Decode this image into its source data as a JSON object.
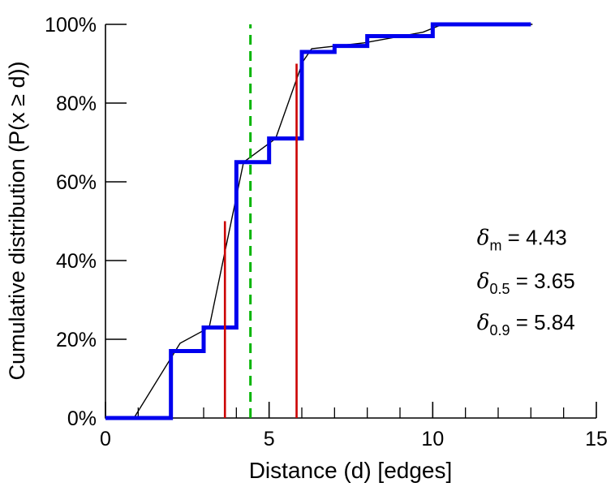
{
  "figure": {
    "title": ""
  },
  "chart_data": {
    "type": "line",
    "title": "",
    "xlabel": "Distance (d) [edges]",
    "ylabel": "Cumulative distribution (P(x ≥ d))",
    "xlim": [
      0,
      15
    ],
    "ylim": [
      0,
      100
    ],
    "grid": false,
    "legend": "none",
    "x_major_ticks": [
      0,
      5,
      10,
      15
    ],
    "x_tick_labels": [
      "0",
      "5",
      "10",
      "15"
    ],
    "x_minor_ticks": [
      1,
      2,
      3,
      4,
      6,
      7,
      8,
      9,
      11,
      12,
      13,
      14
    ],
    "y_ticks": [
      0,
      20,
      40,
      60,
      80,
      100
    ],
    "y_tick_labels": [
      "0%",
      "20%",
      "40%",
      "60%",
      "80%",
      "100%"
    ],
    "colors": {
      "steps": "#0000ee",
      "interpolation": "#000000",
      "quantile_marker": "#cc0000",
      "mean_marker": "#00b400",
      "axis": "#000000"
    },
    "series": [
      {
        "name": "cdf-interpolated-line",
        "style": "line",
        "color": "#000000",
        "width": 1.4,
        "points": [
          [
            0.87,
            0
          ],
          [
            2.28,
            19
          ],
          [
            3.17,
            23
          ],
          [
            4.22,
            65
          ],
          [
            5.2,
            71
          ],
          [
            6.03,
            90.5
          ],
          [
            6.3,
            93.8
          ],
          [
            7.9,
            95.3
          ],
          [
            9.7,
            98
          ],
          [
            10.3,
            100
          ],
          [
            13.05,
            100
          ]
        ]
      },
      {
        "name": "cdf-steps-line",
        "style": "step",
        "color": "#0000ee",
        "width": 5,
        "points": [
          [
            0,
            0
          ],
          [
            2,
            0
          ],
          [
            2,
            17
          ],
          [
            3,
            17
          ],
          [
            3,
            23
          ],
          [
            4,
            23
          ],
          [
            4,
            65
          ],
          [
            5,
            65
          ],
          [
            5,
            71
          ],
          [
            6,
            71
          ],
          [
            6,
            93
          ],
          [
            7,
            93
          ],
          [
            7,
            94.5
          ],
          [
            8,
            94.5
          ],
          [
            8,
            97
          ],
          [
            10,
            97
          ],
          [
            10,
            100
          ],
          [
            13,
            100
          ]
        ]
      }
    ],
    "vlines": [
      {
        "name": "delta-0.5-marker-line",
        "x": 3.65,
        "y0": 0,
        "y1": 50,
        "color": "#cc0000",
        "width": 2.6,
        "style": "solid"
      },
      {
        "name": "delta-0.9-marker-line",
        "x": 5.84,
        "y0": 0,
        "y1": 90,
        "color": "#cc0000",
        "width": 2.6,
        "style": "solid"
      },
      {
        "name": "delta-mean-marker-line",
        "x": 4.43,
        "y0": 0,
        "y1": 100,
        "color": "#00b400",
        "width": 3,
        "style": "dashed"
      }
    ],
    "annotations": [
      {
        "name": "delta-m-label",
        "symbol": "δ",
        "sub": "m",
        "text": "= 4.43",
        "x": 11.35,
        "y": 44
      },
      {
        "name": "delta-0.5-label",
        "symbol": "δ",
        "sub": "0.5",
        "text": "= 3.65",
        "x": 11.35,
        "y": 33
      },
      {
        "name": "delta-0.9-label",
        "symbol": "δ",
        "sub": "0.9",
        "text": "= 5.84",
        "x": 11.35,
        "y": 22.5
      }
    ],
    "values": {
      "delta_m": "4.43",
      "delta_0_5": "3.65",
      "delta_0_9": "5.84"
    }
  }
}
